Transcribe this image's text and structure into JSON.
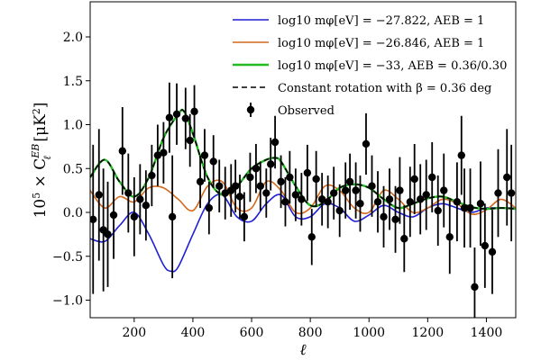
{
  "chart_data": {
    "type": "line",
    "xlabel": "ℓ",
    "ylabel": "10⁵ × C_ℓ^{EB} [μK²]",
    "ylabel_parts": {
      "prefix": "10",
      "exp": "5",
      "mid": " × C",
      "sub": "ℓ",
      "sup": "EB",
      "unit": " [μK",
      "unit_exp": "2",
      "unit_end": "]"
    },
    "xlim": [
      50,
      1500
    ],
    "ylim": [
      -1.2,
      2.4
    ],
    "xticks": [
      200,
      400,
      600,
      800,
      1000,
      1200,
      1400
    ],
    "yticks": [
      -1.0,
      -0.5,
      0.0,
      0.5,
      1.0,
      1.5,
      2.0
    ],
    "xtick_labels": [
      "200",
      "400",
      "600",
      "800",
      "1000",
      "1200",
      "1400"
    ],
    "ytick_labels": [
      "−1.0",
      "−0.5",
      "0.0",
      "0.5",
      "1.0",
      "1.5",
      "2.0"
    ],
    "legend_position": "top-right",
    "series": [
      {
        "name": "log₁₀ m_φ[eV] = −27.822, A_EB = 1",
        "legend_text": "log10 mφ[eV] = −27.822, AEB = 1",
        "color": "#1f1fd6",
        "style": "solid",
        "x": [
          50,
          100,
          150,
          200,
          250,
          300,
          325,
          350,
          400,
          450,
          500,
          550,
          600,
          650,
          700,
          750,
          800,
          850,
          900,
          950,
          1000,
          1050,
          1100,
          1150,
          1200,
          1250,
          1300,
          1350,
          1400,
          1450,
          1500
        ],
        "y": [
          -0.3,
          -0.33,
          -0.15,
          0.0,
          -0.25,
          -0.6,
          -0.67,
          -0.62,
          -0.25,
          0.1,
          0.2,
          -0.05,
          -0.1,
          0.1,
          0.2,
          -0.05,
          -0.05,
          0.1,
          0.05,
          -0.1,
          -0.03,
          0.08,
          0.0,
          -0.05,
          0.05,
          0.1,
          0.05,
          0.0,
          0.05,
          0.05,
          0.05
        ]
      },
      {
        "name": "log₁₀ m_φ[eV] = −26.846, A_EB = 1",
        "legend_text": "log10 mφ[eV] = −26.846, AEB = 1",
        "color": "#d2691e",
        "style": "solid",
        "x": [
          50,
          100,
          150,
          200,
          250,
          300,
          350,
          400,
          450,
          500,
          550,
          600,
          650,
          700,
          750,
          800,
          850,
          900,
          950,
          1000,
          1050,
          1100,
          1150,
          1200,
          1250,
          1300,
          1350,
          1400,
          1450,
          1500
        ],
        "y": [
          0.25,
          0.05,
          0.18,
          0.12,
          0.28,
          0.28,
          0.15,
          0.02,
          0.3,
          0.35,
          0.05,
          0.05,
          0.35,
          0.25,
          0.0,
          0.05,
          0.3,
          0.25,
          0.05,
          0.0,
          0.25,
          0.15,
          0.0,
          0.05,
          0.15,
          0.1,
          -0.02,
          0.03,
          0.15,
          0.05
        ]
      },
      {
        "name": "log₁₀ m_φ[eV] = −33, A_EB = 0.36/0.30",
        "legend_text": "log10 mφ[eV] = −33, AEB = 0.36/0.30",
        "color": "#22bb22",
        "style": "solid",
        "x": [
          50,
          100,
          150,
          200,
          250,
          300,
          350,
          370,
          400,
          450,
          500,
          550,
          600,
          650,
          680,
          700,
          750,
          800,
          850,
          900,
          950,
          1000,
          1050,
          1100,
          1150,
          1200,
          1250,
          1300,
          1350,
          1400,
          1450,
          1500
        ],
        "y": [
          0.4,
          0.6,
          0.35,
          0.18,
          0.4,
          0.85,
          1.12,
          1.15,
          0.9,
          0.4,
          0.2,
          0.3,
          0.5,
          0.6,
          0.62,
          0.58,
          0.3,
          0.08,
          0.12,
          0.28,
          0.32,
          0.28,
          0.15,
          0.05,
          0.1,
          0.16,
          0.18,
          0.12,
          0.06,
          0.04,
          0.05,
          0.04
        ]
      },
      {
        "name": "Constant rotation with β = 0.36 deg",
        "legend_text": "Constant rotation with β = 0.36 deg",
        "color": "#000000",
        "style": "dashed",
        "x": [
          50,
          100,
          150,
          200,
          250,
          300,
          350,
          370,
          400,
          450,
          500,
          550,
          600,
          650,
          680,
          700,
          750,
          800,
          850,
          900,
          950,
          1000,
          1050,
          1100,
          1150,
          1200,
          1250,
          1300,
          1350,
          1400,
          1450,
          1500
        ],
        "y": [
          0.4,
          0.6,
          0.35,
          0.18,
          0.4,
          0.85,
          1.12,
          1.15,
          0.9,
          0.4,
          0.2,
          0.3,
          0.5,
          0.6,
          0.62,
          0.58,
          0.3,
          0.08,
          0.12,
          0.28,
          0.32,
          0.28,
          0.15,
          0.05,
          0.1,
          0.16,
          0.18,
          0.12,
          0.06,
          0.04,
          0.05,
          0.04
        ]
      }
    ],
    "observed": {
      "name": "Observed",
      "color": "#000000",
      "points": [
        {
          "x": 60,
          "y": -0.08,
          "err": 0.85
        },
        {
          "x": 80,
          "y": 0.2,
          "err": 0.75
        },
        {
          "x": 95,
          "y": -0.2,
          "err": 0.7
        },
        {
          "x": 110,
          "y": -0.25,
          "err": 0.6
        },
        {
          "x": 130,
          "y": -0.03,
          "err": 0.5
        },
        {
          "x": 160,
          "y": 0.7,
          "err": 0.5
        },
        {
          "x": 180,
          "y": 0.22,
          "err": 0.45
        },
        {
          "x": 200,
          "y": -0.05,
          "err": 0.45
        },
        {
          "x": 220,
          "y": 0.15,
          "err": 0.4
        },
        {
          "x": 240,
          "y": 0.08,
          "err": 0.4
        },
        {
          "x": 260,
          "y": 0.42,
          "err": 0.35
        },
        {
          "x": 280,
          "y": 0.65,
          "err": 0.35
        },
        {
          "x": 300,
          "y": 0.68,
          "err": 0.35
        },
        {
          "x": 320,
          "y": 1.08,
          "err": 0.4
        },
        {
          "x": 330,
          "y": -0.05,
          "err": 0.7
        },
        {
          "x": 345,
          "y": 1.12,
          "err": 0.35
        },
        {
          "x": 375,
          "y": 1.07,
          "err": 0.35
        },
        {
          "x": 390,
          "y": 0.82,
          "err": 0.3
        },
        {
          "x": 405,
          "y": 1.15,
          "err": 0.3
        },
        {
          "x": 425,
          "y": 0.35,
          "err": 0.3
        },
        {
          "x": 440,
          "y": 0.65,
          "err": 0.3
        },
        {
          "x": 455,
          "y": 0.05,
          "err": 0.3
        },
        {
          "x": 470,
          "y": 0.58,
          "err": 0.3
        },
        {
          "x": 490,
          "y": 0.3,
          "err": 0.3
        },
        {
          "x": 510,
          "y": 0.22,
          "err": 0.3
        },
        {
          "x": 530,
          "y": 0.25,
          "err": 0.3
        },
        {
          "x": 545,
          "y": 0.3,
          "err": 0.3
        },
        {
          "x": 560,
          "y": 0.18,
          "err": 0.25
        },
        {
          "x": 575,
          "y": -0.05,
          "err": 0.28
        },
        {
          "x": 595,
          "y": 0.4,
          "err": 0.28
        },
        {
          "x": 615,
          "y": 0.5,
          "err": 0.28
        },
        {
          "x": 630,
          "y": 0.3,
          "err": 0.28
        },
        {
          "x": 650,
          "y": 0.22,
          "err": 0.28
        },
        {
          "x": 665,
          "y": 0.55,
          "err": 0.3
        },
        {
          "x": 680,
          "y": 0.8,
          "err": 0.3
        },
        {
          "x": 700,
          "y": 0.35,
          "err": 0.3
        },
        {
          "x": 715,
          "y": 0.12,
          "err": 0.28
        },
        {
          "x": 730,
          "y": 0.4,
          "err": 0.3
        },
        {
          "x": 750,
          "y": 0.2,
          "err": 0.3
        },
        {
          "x": 770,
          "y": 0.15,
          "err": 0.3
        },
        {
          "x": 790,
          "y": 0.45,
          "err": 0.32
        },
        {
          "x": 805,
          "y": -0.28,
          "err": 0.32
        },
        {
          "x": 820,
          "y": 0.38,
          "err": 0.32
        },
        {
          "x": 840,
          "y": 0.15,
          "err": 0.3
        },
        {
          "x": 860,
          "y": 0.12,
          "err": 0.3
        },
        {
          "x": 880,
          "y": 0.22,
          "err": 0.3
        },
        {
          "x": 900,
          "y": 0.02,
          "err": 0.3
        },
        {
          "x": 920,
          "y": 0.25,
          "err": 0.32
        },
        {
          "x": 935,
          "y": 0.35,
          "err": 0.32
        },
        {
          "x": 955,
          "y": 0.25,
          "err": 0.32
        },
        {
          "x": 970,
          "y": 0.1,
          "err": 0.32
        },
        {
          "x": 990,
          "y": 0.78,
          "err": 0.35
        },
        {
          "x": 1010,
          "y": 0.3,
          "err": 0.35
        },
        {
          "x": 1030,
          "y": 0.12,
          "err": 0.35
        },
        {
          "x": 1050,
          "y": -0.05,
          "err": 0.35
        },
        {
          "x": 1070,
          "y": 0.15,
          "err": 0.35
        },
        {
          "x": 1090,
          "y": -0.08,
          "err": 0.38
        },
        {
          "x": 1105,
          "y": 0.25,
          "err": 0.38
        },
        {
          "x": 1120,
          "y": -0.3,
          "err": 0.38
        },
        {
          "x": 1140,
          "y": 0.12,
          "err": 0.4
        },
        {
          "x": 1155,
          "y": 0.38,
          "err": 0.4
        },
        {
          "x": 1175,
          "y": 0.15,
          "err": 0.4
        },
        {
          "x": 1195,
          "y": 0.2,
          "err": 0.4
        },
        {
          "x": 1215,
          "y": 0.4,
          "err": 0.4
        },
        {
          "x": 1235,
          "y": 0.02,
          "err": 0.4
        },
        {
          "x": 1255,
          "y": 0.25,
          "err": 0.42
        },
        {
          "x": 1275,
          "y": -0.28,
          "err": 0.42
        },
        {
          "x": 1300,
          "y": 0.12,
          "err": 0.45
        },
        {
          "x": 1315,
          "y": 0.65,
          "err": 0.45
        },
        {
          "x": 1325,
          "y": 0.05,
          "err": 0.45
        },
        {
          "x": 1345,
          "y": 0.05,
          "err": 0.45
        },
        {
          "x": 1360,
          "y": -0.85,
          "err": 0.45
        },
        {
          "x": 1380,
          "y": 0.1,
          "err": 0.48
        },
        {
          "x": 1395,
          "y": -0.38,
          "err": 0.48
        },
        {
          "x": 1420,
          "y": -0.45,
          "err": 0.48
        },
        {
          "x": 1440,
          "y": 0.22,
          "err": 0.5
        },
        {
          "x": 1470,
          "y": 0.4,
          "err": 0.55
        },
        {
          "x": 1485,
          "y": 0.22,
          "err": 0.55
        }
      ]
    }
  }
}
